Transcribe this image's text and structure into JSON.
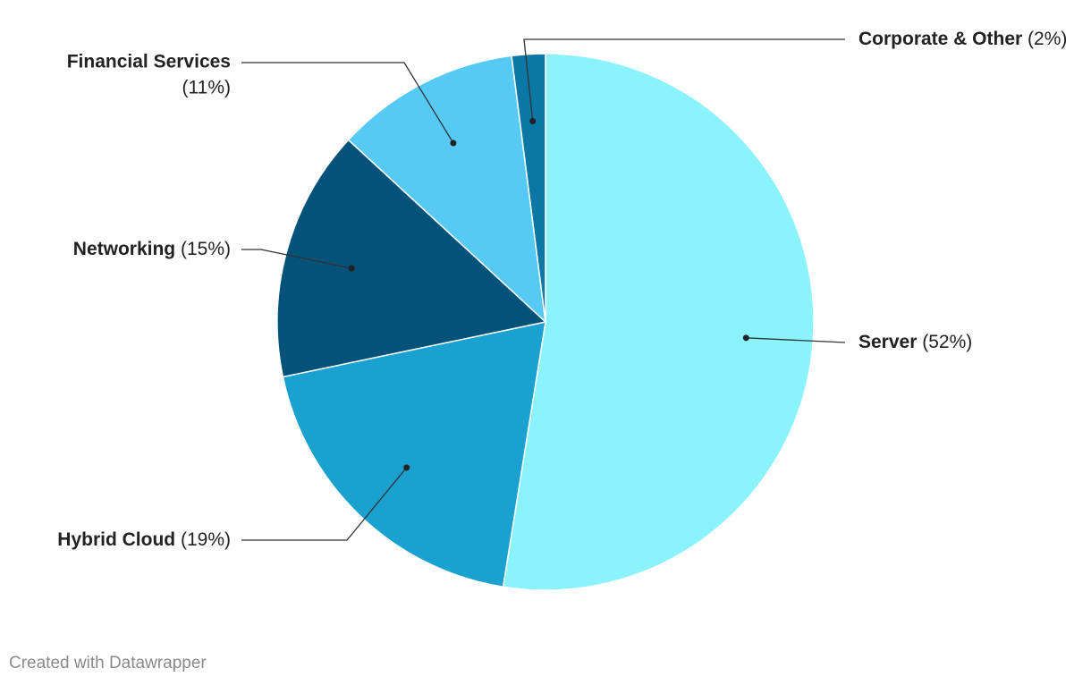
{
  "chart_data": {
    "type": "pie",
    "categories": [
      "Server",
      "Hybrid Cloud",
      "Networking",
      "Financial Services",
      "Corporate & Other"
    ],
    "values": [
      52,
      19,
      15,
      11,
      2
    ],
    "value_labels": [
      "(52%)",
      "(19%)",
      "(15%)",
      "(11%)",
      "(2%)"
    ],
    "colors": [
      "#8af3fe",
      "#1ba1cf",
      "#02527a",
      "#57c9f5",
      "#0a77a5"
    ],
    "credit": "Created with Datawrapper"
  }
}
